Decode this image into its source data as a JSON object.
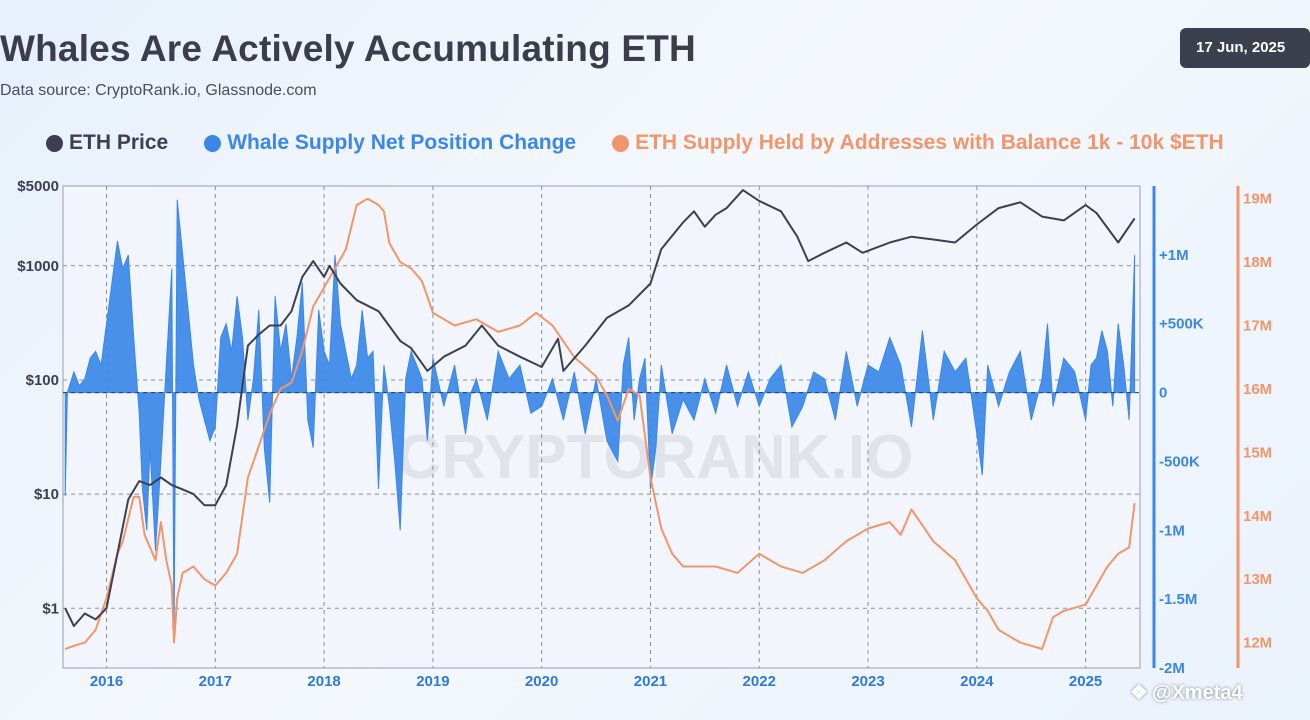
{
  "header": {
    "title": "Whales Are Actively Accumulating ETH",
    "source": "Data source: CryptoRank.io, Glassnode.com",
    "date": "17 Jun, 2025"
  },
  "legend": [
    {
      "label": "ETH Price",
      "color": "#3d3f50"
    },
    {
      "label": "Whale Supply Net Position Change",
      "color": "#3b87e8"
    },
    {
      "label": "ETH Supply Held by Addresses with Balance 1k - 10k $ETH",
      "color": "#f1956b"
    }
  ],
  "watermark": {
    "text": "@Xmeta4",
    "bg_text": "CRYPTORANK.IO"
  },
  "colors": {
    "price": "#3d3f50",
    "whale": "#3b87e8",
    "supply": "#f1956b",
    "grid": "#8a8f99"
  },
  "chart_data": {
    "type": "line",
    "title": "Whales Are Actively Accumulating ETH",
    "x_ticks": [
      "2016",
      "2017",
      "2018",
      "2019",
      "2020",
      "2021",
      "2022",
      "2023",
      "2024",
      "2025"
    ],
    "x_range": [
      2015.6,
      2025.5
    ],
    "left_axis": {
      "label": "ETH Price",
      "scale": "log",
      "range": [
        0.3,
        5000
      ],
      "ticks": [
        {
          "v": 1,
          "label": "$1"
        },
        {
          "v": 10,
          "label": "$10"
        },
        {
          "v": 100,
          "label": "$100"
        },
        {
          "v": 1000,
          "label": "$1000"
        },
        {
          "v": 5000,
          "label": "$5000"
        }
      ]
    },
    "mid_axis": {
      "label": "Whale Supply Net Position Change",
      "range": [
        -2000000,
        1500000
      ],
      "ticks": [
        {
          "v": 1000000,
          "label": "+1M"
        },
        {
          "v": 500000,
          "label": "+500K"
        },
        {
          "v": 0,
          "label": "0"
        },
        {
          "v": -500000,
          "label": "-500K"
        },
        {
          "v": -1000000,
          "label": "-1M"
        },
        {
          "v": -1500000,
          "label": "-1.5M"
        },
        {
          "v": -2000000,
          "label": "-2M"
        }
      ]
    },
    "right_axis": {
      "label": "ETH Supply Held by Addresses with Balance 1k - 10k $ETH",
      "range": [
        11.6,
        19.2
      ],
      "ticks": [
        {
          "v": 19,
          "label": "19M"
        },
        {
          "v": 18,
          "label": "18M"
        },
        {
          "v": 17,
          "label": "17M"
        },
        {
          "v": 16,
          "label": "16M"
        },
        {
          "v": 15,
          "label": "15M"
        },
        {
          "v": 14,
          "label": "14M"
        },
        {
          "v": 13,
          "label": "13M"
        },
        {
          "v": 12,
          "label": "12M"
        }
      ]
    },
    "series": [
      {
        "name": "ETH Price",
        "axis": "left",
        "x": [
          2015.62,
          2015.7,
          2015.8,
          2015.9,
          2016.0,
          2016.1,
          2016.2,
          2016.3,
          2016.4,
          2016.5,
          2016.6,
          2016.7,
          2016.8,
          2016.9,
          2017.0,
          2017.1,
          2017.2,
          2017.3,
          2017.4,
          2017.5,
          2017.6,
          2017.7,
          2017.8,
          2017.9,
          2018.0,
          2018.05,
          2018.15,
          2018.3,
          2018.5,
          2018.7,
          2018.8,
          2018.95,
          2019.1,
          2019.3,
          2019.45,
          2019.6,
          2019.8,
          2020.0,
          2020.15,
          2020.2,
          2020.4,
          2020.6,
          2020.8,
          2021.0,
          2021.1,
          2021.3,
          2021.4,
          2021.5,
          2021.6,
          2021.7,
          2021.85,
          2022.0,
          2022.2,
          2022.35,
          2022.45,
          2022.6,
          2022.8,
          2022.95,
          2023.2,
          2023.4,
          2023.6,
          2023.8,
          2024.0,
          2024.2,
          2024.4,
          2024.6,
          2024.8,
          2025.0,
          2025.1,
          2025.3,
          2025.45
        ],
        "values": [
          1.0,
          0.7,
          0.9,
          0.8,
          1.0,
          3.0,
          9.0,
          13.0,
          12.0,
          14.0,
          12.0,
          11.0,
          10.0,
          8.0,
          8.0,
          12.0,
          40.0,
          200.0,
          250.0,
          300.0,
          300.0,
          400.0,
          800.0,
          1100.0,
          800.0,
          1000.0,
          700.0,
          500.0,
          400.0,
          220.0,
          190.0,
          120.0,
          160.0,
          200.0,
          300.0,
          200.0,
          160.0,
          130.0,
          230.0,
          120.0,
          200.0,
          350.0,
          450.0,
          700.0,
          1400.0,
          2400.0,
          3000.0,
          2200.0,
          2800.0,
          3200.0,
          4600.0,
          3700.0,
          3000.0,
          1800.0,
          1100.0,
          1300.0,
          1600.0,
          1300.0,
          1600.0,
          1800.0,
          1700.0,
          1600.0,
          2300.0,
          3200.0,
          3600.0,
          2700.0,
          2500.0,
          3400.0,
          2900.0,
          1600.0,
          2600.0
        ]
      },
      {
        "name": "Whale Supply Net Position Change",
        "axis": "mid",
        "style": "area",
        "x": [
          2015.62,
          2015.64,
          2015.7,
          2015.75,
          2015.8,
          2015.85,
          2015.9,
          2015.95,
          2016.0,
          2016.05,
          2016.1,
          2016.15,
          2016.2,
          2016.25,
          2016.3,
          2016.33,
          2016.37,
          2016.4,
          2016.45,
          2016.5,
          2016.55,
          2016.6,
          2016.62,
          2016.65,
          2016.7,
          2016.75,
          2016.8,
          2016.85,
          2016.9,
          2016.95,
          2017.0,
          2017.05,
          2017.1,
          2017.15,
          2017.2,
          2017.25,
          2017.3,
          2017.35,
          2017.4,
          2017.45,
          2017.5,
          2017.55,
          2017.6,
          2017.65,
          2017.7,
          2017.75,
          2017.8,
          2017.85,
          2017.9,
          2017.95,
          2018.0,
          2018.05,
          2018.1,
          2018.15,
          2018.2,
          2018.25,
          2018.3,
          2018.35,
          2018.4,
          2018.45,
          2018.5,
          2018.55,
          2018.6,
          2018.65,
          2018.7,
          2018.75,
          2018.8,
          2018.85,
          2018.9,
          2018.95,
          2019.0,
          2019.1,
          2019.2,
          2019.3,
          2019.35,
          2019.4,
          2019.5,
          2019.6,
          2019.7,
          2019.8,
          2019.9,
          2020.0,
          2020.1,
          2020.2,
          2020.3,
          2020.4,
          2020.5,
          2020.6,
          2020.7,
          2020.75,
          2020.8,
          2020.85,
          2020.9,
          2020.95,
          2021.0,
          2021.05,
          2021.1,
          2021.2,
          2021.3,
          2021.4,
          2021.5,
          2021.6,
          2021.7,
          2021.8,
          2021.9,
          2022.0,
          2022.1,
          2022.2,
          2022.3,
          2022.4,
          2022.5,
          2022.6,
          2022.7,
          2022.8,
          2022.9,
          2023.0,
          2023.1,
          2023.2,
          2023.3,
          2023.4,
          2023.5,
          2023.6,
          2023.7,
          2023.8,
          2023.9,
          2024.0,
          2024.05,
          2024.1,
          2024.2,
          2024.3,
          2024.4,
          2024.5,
          2024.6,
          2024.65,
          2024.7,
          2024.8,
          2024.9,
          2025.0,
          2025.05,
          2025.1,
          2025.15,
          2025.2,
          2025.25,
          2025.3,
          2025.35,
          2025.4,
          2025.45
        ],
        "values": [
          -750000,
          0,
          150000,
          50000,
          100000,
          250000,
          300000,
          200000,
          500000,
          800000,
          1100000,
          900000,
          1000000,
          400000,
          -150000,
          -700000,
          -1000000,
          -400000,
          -1150000,
          -500000,
          200000,
          900000,
          -1800000,
          1400000,
          1000000,
          600000,
          200000,
          -50000,
          -200000,
          -350000,
          -250000,
          400000,
          500000,
          300000,
          700000,
          400000,
          -200000,
          100000,
          600000,
          -400000,
          -800000,
          700000,
          300000,
          500000,
          100000,
          400000,
          800000,
          -200000,
          -400000,
          600000,
          300000,
          200000,
          1000000,
          500000,
          300000,
          100000,
          200000,
          600000,
          250000,
          300000,
          -700000,
          200000,
          -100000,
          -500000,
          -1000000,
          100000,
          300000,
          200000,
          100000,
          -350000,
          250000,
          -100000,
          200000,
          -300000,
          0,
          100000,
          -200000,
          300000,
          100000,
          200000,
          -150000,
          -100000,
          100000,
          -200000,
          150000,
          -300000,
          100000,
          -350000,
          -500000,
          200000,
          400000,
          -200000,
          100000,
          250000,
          -700000,
          -400000,
          200000,
          -300000,
          -50000,
          -200000,
          100000,
          -150000,
          200000,
          -100000,
          150000,
          -100000,
          100000,
          200000,
          -250000,
          -100000,
          150000,
          100000,
          -200000,
          300000,
          -100000,
          200000,
          150000,
          400000,
          200000,
          -250000,
          450000,
          -200000,
          300000,
          150000,
          250000,
          -300000,
          -600000,
          200000,
          -100000,
          150000,
          300000,
          -200000,
          100000,
          500000,
          -100000,
          250000,
          150000,
          -200000,
          200000,
          250000,
          450000,
          300000,
          -100000,
          500000,
          200000,
          -200000,
          1000000
        ]
      },
      {
        "name": "ETH Supply Held by Addresses with Balance 1k - 10k $ETH",
        "axis": "right",
        "x": [
          2015.62,
          2015.7,
          2015.8,
          2015.9,
          2016.0,
          2016.1,
          2016.15,
          2016.25,
          2016.3,
          2016.35,
          2016.45,
          2016.5,
          2016.55,
          2016.6,
          2016.62,
          2016.65,
          2016.7,
          2016.8,
          2016.9,
          2017.0,
          2017.1,
          2017.2,
          2017.3,
          2017.4,
          2017.5,
          2017.6,
          2017.7,
          2017.8,
          2017.9,
          2018.0,
          2018.1,
          2018.2,
          2018.3,
          2018.4,
          2018.5,
          2018.55,
          2018.6,
          2018.7,
          2018.8,
          2018.9,
          2019.0,
          2019.2,
          2019.4,
          2019.6,
          2019.8,
          2019.95,
          2020.1,
          2020.3,
          2020.5,
          2020.6,
          2020.7,
          2020.8,
          2020.9,
          2021.0,
          2021.1,
          2021.2,
          2021.3,
          2021.4,
          2021.6,
          2021.8,
          2022.0,
          2022.2,
          2022.4,
          2022.6,
          2022.8,
          2023.0,
          2023.2,
          2023.3,
          2023.4,
          2023.6,
          2023.8,
          2024.0,
          2024.1,
          2024.2,
          2024.4,
          2024.6,
          2024.7,
          2024.8,
          2025.0,
          2025.1,
          2025.2,
          2025.3,
          2025.4,
          2025.45
        ],
        "values": [
          11.9,
          11.95,
          12.0,
          12.2,
          12.7,
          13.4,
          13.6,
          14.3,
          14.3,
          13.7,
          13.3,
          13.9,
          13.3,
          12.9,
          12.0,
          12.7,
          13.1,
          13.2,
          13.0,
          12.9,
          13.1,
          13.4,
          14.6,
          15.1,
          15.6,
          16.0,
          16.1,
          16.6,
          17.3,
          17.6,
          17.9,
          18.2,
          18.9,
          19.0,
          18.9,
          18.8,
          18.3,
          18.0,
          17.9,
          17.7,
          17.2,
          17.0,
          17.1,
          16.9,
          17.0,
          17.2,
          17.0,
          16.5,
          16.2,
          15.9,
          15.5,
          16.0,
          15.9,
          14.6,
          13.8,
          13.4,
          13.2,
          13.2,
          13.2,
          13.1,
          13.4,
          13.2,
          13.1,
          13.3,
          13.6,
          13.8,
          13.9,
          13.7,
          14.1,
          13.6,
          13.3,
          12.7,
          12.5,
          12.2,
          12.0,
          11.9,
          12.4,
          12.5,
          12.6,
          12.9,
          13.2,
          13.4,
          13.5,
          14.2
        ]
      }
    ]
  }
}
